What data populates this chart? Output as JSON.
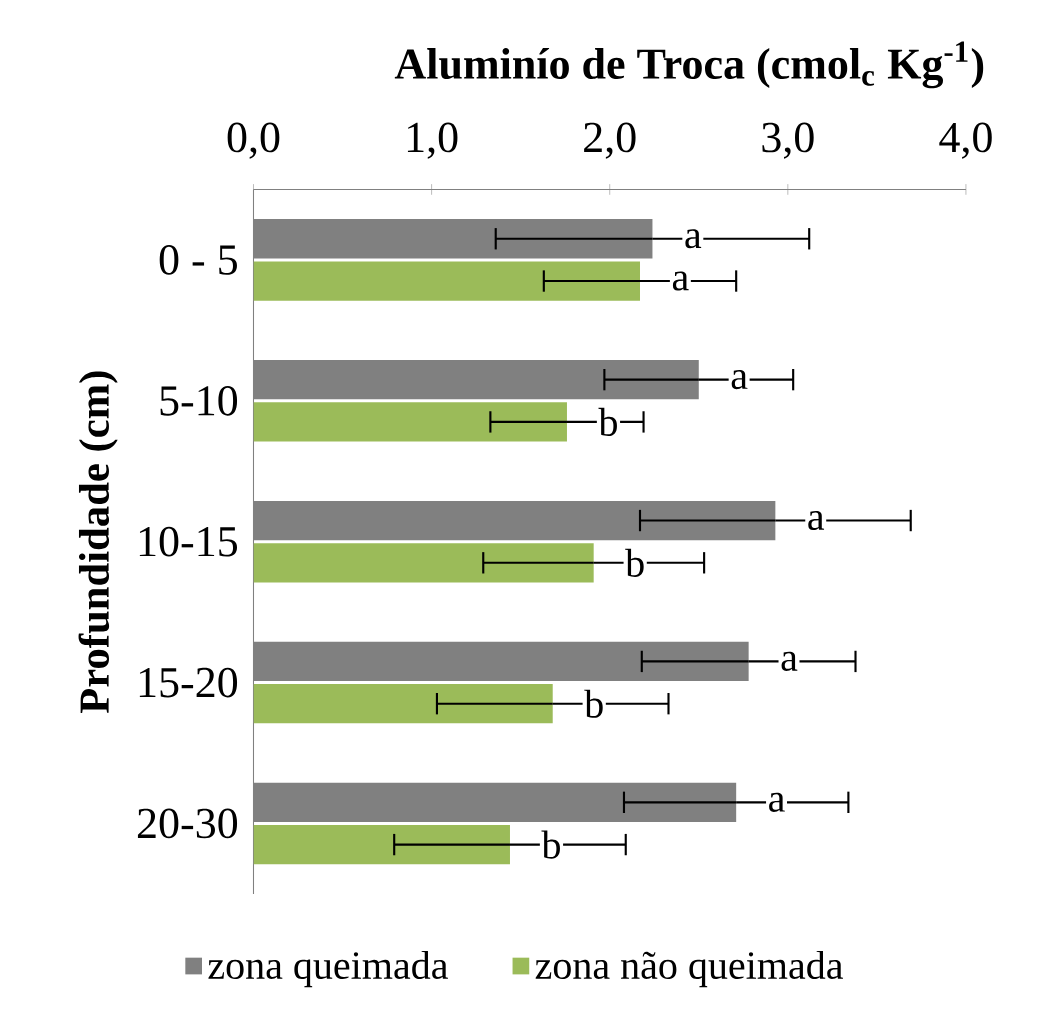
{
  "chart_data": {
    "type": "bar",
    "orientation": "horizontal",
    "xlabel": "Aluminío de Troca (cmol$_{c}$ Kg$^{-1}$)",
    "ylabel": "Profundidade (cm)",
    "categories": [
      "0 - 5",
      "5-10",
      "10-15",
      "15-20",
      "20-30"
    ],
    "xlim": [
      0,
      4
    ],
    "xticks": [
      {
        "value": 0,
        "label": "0,0"
      },
      {
        "value": 1,
        "label": "1,0"
      },
      {
        "value": 2,
        "label": "2,0"
      },
      {
        "value": 3,
        "label": "3,0"
      },
      {
        "value": 4,
        "label": "4,0"
      }
    ],
    "legend": "bottom",
    "series": [
      {
        "name": "zona queimada",
        "color": "#808080",
        "values": [
          2.24,
          2.5,
          2.93,
          2.78,
          2.71
        ],
        "errors": [
          0.88,
          0.53,
          0.76,
          0.6,
          0.63
        ],
        "value_labels": [
          "a",
          "a",
          "a",
          "a",
          "a"
        ]
      },
      {
        "name": "zona não queimada",
        "color": "#9bbb59",
        "values": [
          2.17,
          1.76,
          1.91,
          1.68,
          1.44
        ],
        "errors": [
          0.54,
          0.43,
          0.62,
          0.65,
          0.65
        ],
        "value_labels": [
          "a",
          "b",
          "b",
          "b",
          "b"
        ]
      }
    ]
  }
}
